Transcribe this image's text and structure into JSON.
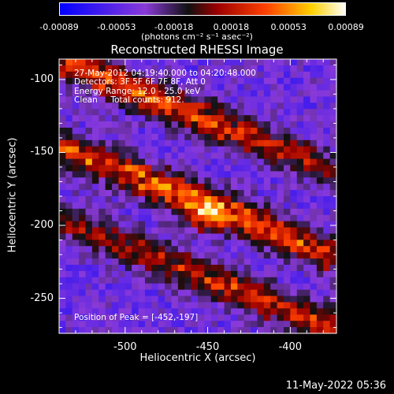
{
  "colorbar": {
    "ticks": [
      "-0.00089",
      "-0.00053",
      "-0.00018",
      "0.00018",
      "0.00053",
      "0.00089"
    ],
    "units": "(photons cm⁻² s⁻¹ asec⁻²)"
  },
  "chart_data": {
    "type": "heatmap",
    "title": "Reconstructed RHESSI Image",
    "xlabel": "Heliocentric X (arcsec)",
    "ylabel": "Heliocentric Y (arcsec)",
    "x_ticks": [
      "-500",
      "-450",
      "-400"
    ],
    "y_ticks": [
      "-100",
      "-150",
      "-200",
      "-250"
    ],
    "xlim": [
      -540,
      -372
    ],
    "ylim": [
      -274,
      -86
    ],
    "value_range": [
      -0.00089,
      0.00089
    ],
    "colormap": "RHESSI blue-purple-red-yellow-white",
    "peak": [
      -452,
      -197
    ],
    "bands": [
      {
        "center_x": -490,
        "center_y": -110,
        "slope": -0.45,
        "amplitude": 0.0008
      },
      {
        "center_x": -460,
        "center_y": -182,
        "slope": -0.45,
        "amplitude": 0.00089
      },
      {
        "center_x": -420,
        "center_y": -250,
        "slope": -0.45,
        "amplitude": 0.0007
      }
    ]
  },
  "info_lines": [
    "27-May-2012 04:19:40.000 to 04:20:48.000",
    "Detectors: 3F 5F 6F 7F 8F, Att 0",
    "Energy Range: 12.0 - 25.0 keV",
    "Clean     Total counts: 912."
  ],
  "peak_text": "Position of Peak = [-452,-197]",
  "footer_date": "11-May-2022 05:36"
}
